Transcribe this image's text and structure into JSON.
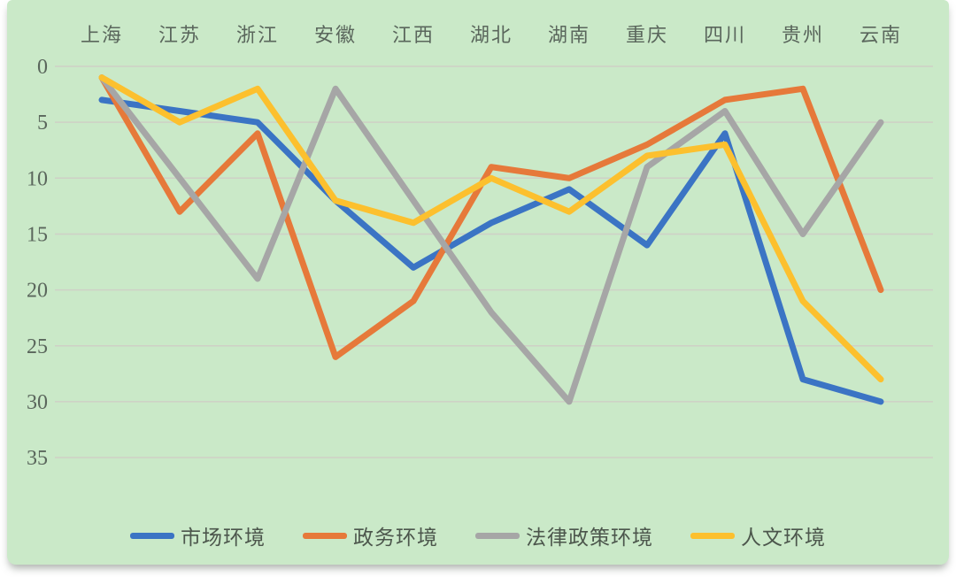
{
  "panel": {
    "background": "#cae9c8",
    "page_background": "#ffffff"
  },
  "axis_text_color": "#5a665c",
  "gridline_color": "rgba(212,188,196,0.55)",
  "chart_data": {
    "type": "line",
    "title": "",
    "xlabel": "",
    "ylabel": "",
    "x_axis_position": "top",
    "y_axis_inverted": true,
    "ylim": [
      0,
      35
    ],
    "y_ticks": [
      0,
      5,
      10,
      15,
      20,
      25,
      30,
      35
    ],
    "grid": "horizontal-faint",
    "legend_position": "bottom",
    "categories": [
      "上海",
      "江苏",
      "浙江",
      "安徽",
      "江西",
      "湖北",
      "湖南",
      "重庆",
      "四川",
      "贵州",
      "云南"
    ],
    "series": [
      {
        "name": "市场环境",
        "color": "#3b74c4",
        "values": [
          3,
          4,
          5,
          12,
          18,
          14,
          11,
          16,
          6,
          28,
          30
        ]
      },
      {
        "name": "政务环境",
        "color": "#e6793a",
        "values": [
          1,
          13,
          6,
          26,
          21,
          9,
          10,
          7,
          3,
          2,
          20
        ]
      },
      {
        "name": "法律政策环境",
        "color": "#a6a6a6",
        "values": [
          1,
          10,
          19,
          2,
          12,
          22,
          30,
          9,
          4,
          15,
          5
        ]
      },
      {
        "name": "人文环境",
        "color": "#fcc02e",
        "values": [
          1,
          5,
          2,
          12,
          14,
          10,
          13,
          8,
          7,
          21,
          28
        ]
      }
    ]
  }
}
